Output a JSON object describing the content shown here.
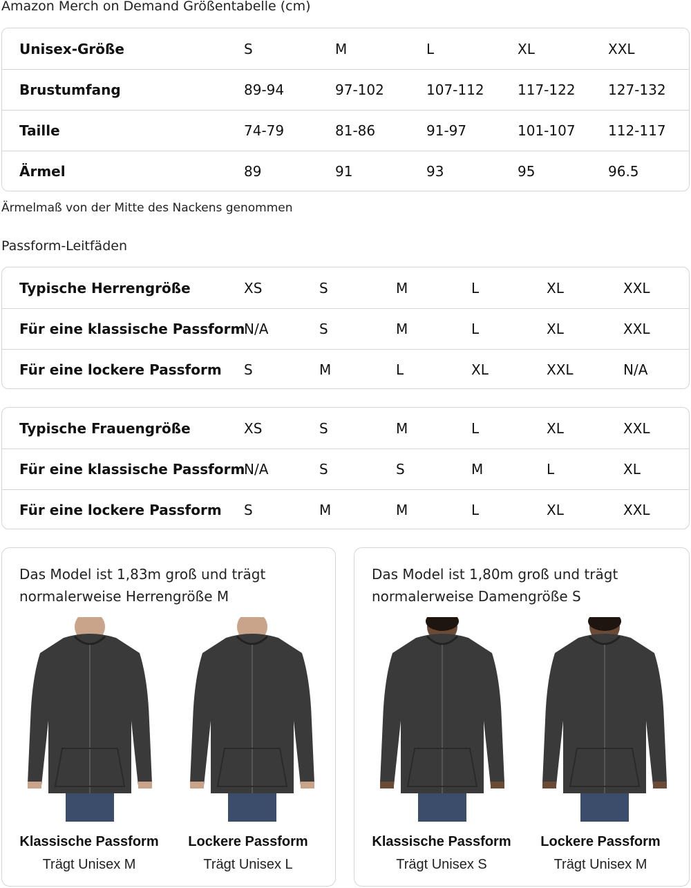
{
  "title": "Amazon Merch on Demand Größentabelle (cm)",
  "size_table": {
    "rows": [
      {
        "label": "Unisex-Größe",
        "values": [
          "S",
          "M",
          "L",
          "XL",
          "XXL"
        ]
      },
      {
        "label": "Brustumfang",
        "values": [
          "89-94",
          "97-102",
          "107-112",
          "117-122",
          "127-132"
        ]
      },
      {
        "label": "Taille",
        "values": [
          "74-79",
          "81-86",
          "91-97",
          "101-107",
          "112-117"
        ]
      },
      {
        "label": "Ärmel",
        "values": [
          "89",
          "91",
          "93",
          "95",
          "96.5"
        ]
      }
    ]
  },
  "sleeve_note": "Ärmelmaß von der Mitte des Nackens genommen",
  "fit_title": "Passform-Leitfäden",
  "men_table": {
    "rows": [
      {
        "label": "Typische Herrengröße",
        "values": [
          "XS",
          "S",
          "M",
          "L",
          "XL",
          "XXL"
        ]
      },
      {
        "label": "Für eine klassische Passform",
        "values": [
          "N/A",
          "S",
          "M",
          "L",
          "XL",
          "XXL"
        ]
      },
      {
        "label": "Für eine lockere Passform",
        "values": [
          "S",
          "M",
          "L",
          "XL",
          "XXL",
          "N/A"
        ]
      }
    ]
  },
  "women_table": {
    "rows": [
      {
        "label": "Typische Frauengröße",
        "values": [
          "XS",
          "S",
          "M",
          "L",
          "XL",
          "XXL"
        ]
      },
      {
        "label": "Für eine klassische Passform",
        "values": [
          "N/A",
          "S",
          "S",
          "M",
          "L",
          "XL"
        ]
      },
      {
        "label": "Für eine lockere Passform",
        "values": [
          "S",
          "M",
          "M",
          "L",
          "XL",
          "XXL"
        ]
      }
    ]
  },
  "cards": [
    {
      "text1": "Das Model ist 1,83m groß und trägt",
      "text2": "normalerweise Herrengröße M",
      "models": [
        {
          "fit": "Klassische Passform",
          "wears": "Trägt Unisex M"
        },
        {
          "fit": "Lockere Passform",
          "wears": "Trägt Unisex L"
        }
      ]
    },
    {
      "text1": "Das Model ist 1,80m groß und trägt",
      "text2": "normalerweise Damengröße S",
      "models": [
        {
          "fit": "Klassische Passform",
          "wears": "Trägt Unisex S"
        },
        {
          "fit": "Lockere Passform",
          "wears": "Trägt Unisex M"
        }
      ]
    }
  ],
  "colors": {
    "border": "#d5d5d5",
    "hoodie": "#3a3a3a",
    "jeans": "#3b4d6b"
  }
}
